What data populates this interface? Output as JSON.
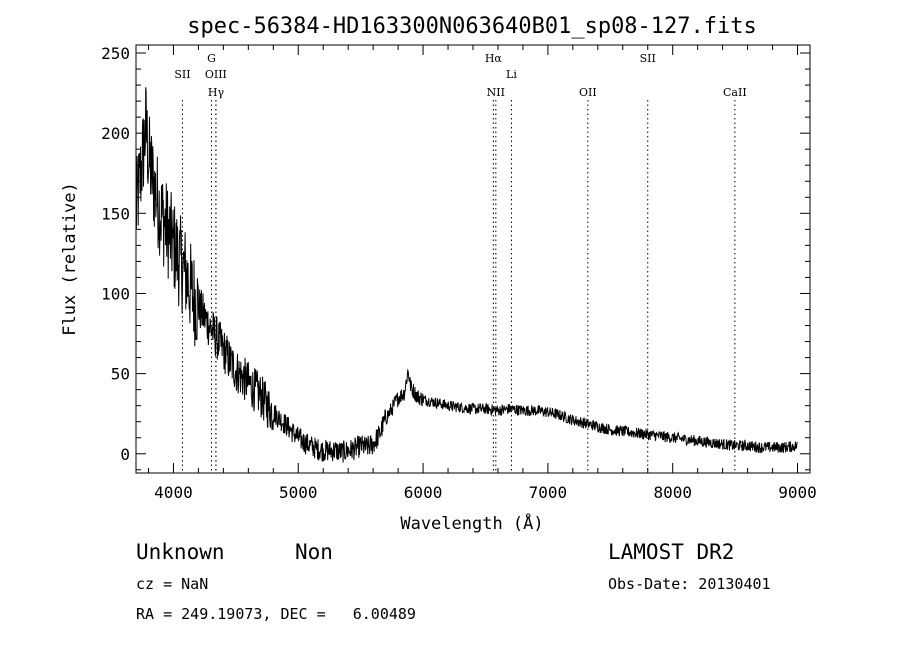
{
  "chart_data": {
    "type": "line",
    "title": "spec-56384-HD163300N063640B01_sp08-127.fits",
    "xlabel": "Wavelength (Å)",
    "ylabel": "Flux (relative)",
    "xlim": [
      3700,
      9100
    ],
    "ylim": [
      -12,
      255
    ],
    "x_ticks": [
      4000,
      5000,
      6000,
      7000,
      8000,
      9000
    ],
    "y_ticks": [
      0,
      50,
      100,
      150,
      200,
      250
    ],
    "grid": false,
    "series": [
      {
        "x": [
          3700,
          3760,
          3780,
          3800,
          3850,
          3900,
          3950,
          4000,
          4050,
          4100,
          4150,
          4200,
          4250,
          4300,
          4350,
          4400,
          4450,
          4500,
          4550,
          4600,
          4650,
          4700,
          4750,
          4800,
          4850,
          4900,
          4950,
          5000,
          5050,
          5100,
          5150,
          5200,
          5250,
          5300,
          5350,
          5400,
          5450,
          5500,
          5550,
          5600,
          5650,
          5700,
          5750,
          5800,
          5850,
          5880,
          5900,
          5950,
          6000,
          6100,
          6200,
          6300,
          6400,
          6500,
          6600,
          6700,
          6800,
          6900,
          7000,
          7100,
          7200,
          7300,
          7400,
          7500,
          7600,
          7700,
          7800,
          7900,
          8000,
          8100,
          8200,
          8300,
          8400,
          8500,
          8600,
          8700,
          8800,
          8900,
          9000
        ],
        "values": [
          150,
          190,
          205,
          185,
          165,
          150,
          140,
          130,
          120,
          112,
          100,
          92,
          85,
          78,
          72,
          65,
          58,
          52,
          48,
          44,
          40,
          36,
          30,
          26,
          22,
          18,
          14,
          10,
          7,
          5,
          3,
          2,
          2,
          2,
          1,
          2,
          3,
          5,
          4,
          6,
          12,
          22,
          28,
          35,
          38,
          52,
          42,
          36,
          34,
          32,
          30,
          29,
          28,
          28,
          27,
          28,
          27,
          27,
          26,
          24,
          21,
          19,
          17,
          15,
          14,
          13,
          12,
          11,
          10,
          9,
          8,
          7,
          6,
          5,
          5,
          4,
          4,
          4,
          5
        ]
      }
    ],
    "annotations": [
      {
        "label": "SII",
        "x": 4072,
        "row": 1
      },
      {
        "label": "G",
        "x": 4305,
        "row": 0
      },
      {
        "label": "OIII",
        "x": 4340,
        "row": 1
      },
      {
        "label": "Hγ",
        "x": 4341,
        "row": 2
      },
      {
        "label": "Hα",
        "x": 6563,
        "row": 0
      },
      {
        "label": "NII",
        "x": 6583,
        "row": 2
      },
      {
        "label": "Li",
        "x": 6708,
        "row": 1
      },
      {
        "label": "OII",
        "x": 7320,
        "row": 2
      },
      {
        "label": "SII",
        "x": 7800,
        "row": 0
      },
      {
        "label": "CaII",
        "x": 8498,
        "row": 2
      }
    ]
  },
  "info": {
    "class": "Unknown",
    "subclass": "Non",
    "survey": "LAMOST DR2",
    "cz": "cz = NaN",
    "obs_date": "Obs-Date: 20130401",
    "coords": "RA = 249.19073, DEC =   6.00489"
  }
}
